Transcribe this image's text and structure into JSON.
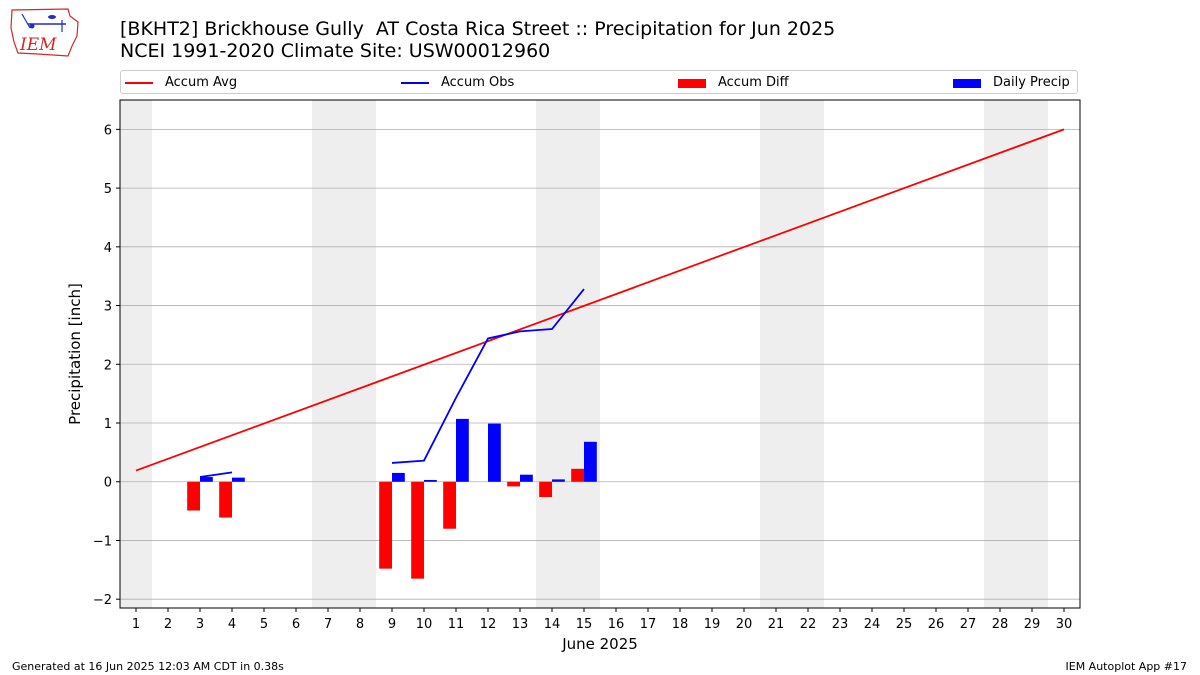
{
  "header": {
    "title_line1": "[BKHT2] Brickhouse Gully  AT Costa Rica Street :: Precipitation for Jun 2025",
    "title_line2": "NCEI 1991-2020 Climate Site: USW00012960"
  },
  "logo": {
    "text": "IEM",
    "color": "#d62728"
  },
  "footer": {
    "generated": "Generated at 16 Jun 2025 12:03 AM CDT in 0.38s",
    "app": "IEM Autoplot App #17"
  },
  "legend": {
    "accum_avg": "Accum Avg",
    "accum_obs": "Accum Obs",
    "accum_diff": "Accum Diff",
    "daily_precip": "Daily Precip"
  },
  "chart_data": {
    "type": "bar",
    "xlabel": "June 2025",
    "ylabel": "Precipitation [inch]",
    "xlim": [
      0.5,
      30.5
    ],
    "ylim": [
      -2.15,
      6.5
    ],
    "x_ticks": [
      1,
      2,
      3,
      4,
      5,
      6,
      7,
      8,
      9,
      10,
      11,
      12,
      13,
      14,
      15,
      16,
      17,
      18,
      19,
      20,
      21,
      22,
      23,
      24,
      25,
      26,
      27,
      28,
      29,
      30
    ],
    "y_ticks": [
      -2,
      -1,
      0,
      1,
      2,
      3,
      4,
      5,
      6
    ],
    "y_tick_labels": [
      "−2",
      "−1",
      "0",
      "1",
      "2",
      "3",
      "4",
      "5",
      "6"
    ],
    "grid": "horizontal",
    "weekend_bands": [
      [
        0.5,
        1.5
      ],
      [
        6.5,
        8.5
      ],
      [
        13.5,
        15.5
      ],
      [
        20.5,
        22.5
      ],
      [
        27.5,
        29.5
      ]
    ],
    "colors": {
      "avg": "#ff0000",
      "obs": "#0000ff",
      "diff": "#ff0000",
      "daily": "#0000ff",
      "band": "#eeeeee"
    },
    "series": [
      {
        "name": "Accum Avg",
        "kind": "line",
        "x": [
          1,
          30
        ],
        "values": [
          0.19,
          6.0
        ]
      },
      {
        "name": "Accum Obs",
        "kind": "line",
        "segments": [
          {
            "x": [
              3,
              4
            ],
            "values": [
              0.08,
              0.16
            ]
          },
          {
            "x": [
              9,
              10,
              11,
              12,
              13,
              14,
              15
            ],
            "values": [
              0.32,
              0.36,
              1.43,
              2.44,
              2.56,
              2.6,
              3.28
            ]
          }
        ]
      },
      {
        "name": "Accum Diff",
        "kind": "bar",
        "x": [
          3,
          4,
          9,
          10,
          11,
          13,
          14,
          15
        ],
        "values": [
          -0.49,
          -0.61,
          -1.48,
          -1.65,
          -0.8,
          -0.08,
          -0.26,
          0.22
        ]
      },
      {
        "name": "Daily Precip",
        "kind": "bar",
        "x": [
          3,
          4,
          9,
          10,
          11,
          12,
          13,
          14,
          15
        ],
        "values": [
          0.08,
          0.07,
          0.15,
          0.03,
          1.07,
          0.99,
          0.12,
          0.04,
          0.68
        ]
      }
    ]
  }
}
